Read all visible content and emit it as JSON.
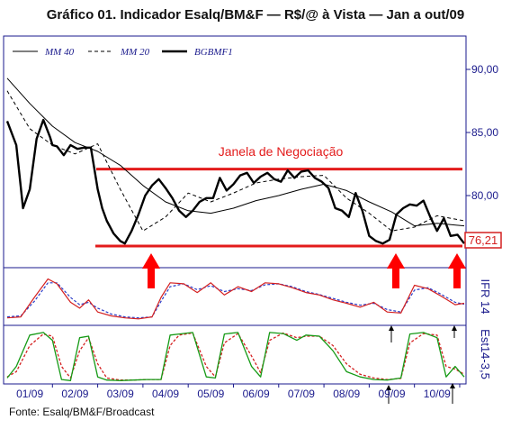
{
  "title": "Gráfico 01. Indicador Esalq/BM&F — R$/@ à Vista  — Jan a out/09",
  "source": "Fonte: Esalq/BM&F/Broadcast",
  "colors": {
    "axis": "#1a1a8c",
    "price": "#000000",
    "band": "#e31b1b",
    "ifr": "#d42020",
    "ifr_signal": "#2a3cc8",
    "est": "#159a15",
    "est_signal": "#d42020",
    "arrow": "#ff0000",
    "last_box": "#d42020"
  },
  "chart_data": [
    {
      "type": "line",
      "title": "",
      "legend": [
        "MM 40",
        "MM 20",
        "BGBMF1"
      ],
      "yticks": [
        "90,00",
        "85,00",
        "80,00"
      ],
      "ylim": [
        75.5,
        90.5
      ],
      "xticks": [
        "01/09",
        "02/09",
        "03/09",
        "04/09",
        "05/09",
        "06/09",
        "07/09",
        "08/09",
        "09/09",
        "10/09"
      ],
      "last_value_label": "76,21",
      "band_label": "Janela de Negociação",
      "band_lines": [
        82.1,
        76.0
      ],
      "series": [
        {
          "name": "BGBMF1",
          "x": [
            0,
            0.2,
            0.35,
            0.5,
            0.65,
            0.8,
            0.95,
            1.0,
            1.1,
            1.25,
            1.4,
            1.55,
            1.7,
            1.85,
            2.0,
            2.1,
            2.2,
            2.35,
            2.5,
            2.6,
            2.75,
            2.9,
            3.05,
            3.2,
            3.35,
            3.5,
            3.65,
            3.8,
            3.95,
            4.1,
            4.25,
            4.4,
            4.55,
            4.7,
            4.85,
            5.0,
            5.15,
            5.3,
            5.45,
            5.6,
            5.75,
            5.9,
            6.05,
            6.2,
            6.35,
            6.5,
            6.65,
            6.8,
            6.95,
            7.1,
            7.25,
            7.4,
            7.55,
            7.7,
            7.85,
            8.0,
            8.15,
            8.3,
            8.45,
            8.6,
            8.75,
            8.9,
            9.05,
            9.2,
            9.35,
            9.5,
            9.65,
            9.8,
            9.95,
            10.1
          ],
          "values": [
            85.9,
            84.0,
            79.0,
            80.5,
            84.5,
            86.0,
            84.6,
            84.0,
            83.9,
            83.2,
            84.0,
            83.7,
            83.8,
            83.8,
            80.5,
            79.0,
            78.0,
            77.0,
            76.4,
            76.2,
            77.2,
            78.5,
            80.0,
            80.8,
            81.3,
            80.6,
            79.8,
            78.8,
            78.3,
            78.8,
            79.5,
            79.8,
            79.8,
            81.4,
            80.4,
            80.9,
            81.6,
            81.8,
            81.0,
            81.5,
            81.8,
            81.3,
            81.1,
            82.0,
            81.4,
            81.9,
            82.0,
            81.4,
            81.1,
            80.6,
            79.0,
            78.8,
            78.3,
            80.2,
            78.8,
            76.8,
            76.4,
            76.2,
            76.5,
            78.5,
            79.0,
            79.3,
            79.2,
            79.6,
            78.3,
            77.2,
            78.2,
            76.8,
            76.9,
            76.2
          ]
        },
        {
          "name": "MM 20",
          "x": [
            0,
            0.5,
            1.0,
            1.5,
            2.0,
            2.5,
            3.0,
            3.5,
            4.0,
            4.5,
            5.0,
            5.5,
            6.0,
            6.5,
            7.0,
            7.5,
            8.0,
            8.5,
            9.0,
            9.5,
            10.1
          ],
          "values": [
            88.3,
            85.3,
            84.0,
            83.3,
            84.1,
            80.5,
            77.2,
            78.3,
            80.2,
            79.5,
            80.2,
            81.0,
            81.3,
            81.5,
            81.6,
            79.8,
            78.6,
            77.2,
            77.5,
            78.4,
            78.0
          ]
        },
        {
          "name": "MM 40",
          "x": [
            0,
            0.5,
            1.0,
            1.5,
            2.0,
            2.5,
            3.0,
            3.5,
            4.0,
            4.5,
            5.0,
            5.5,
            6.0,
            6.5,
            7.0,
            7.5,
            8.0,
            8.5,
            9.0,
            9.5,
            10.1
          ],
          "values": [
            89.3,
            87.3,
            85.5,
            84.2,
            83.5,
            82.4,
            80.8,
            79.5,
            78.8,
            78.6,
            79.0,
            79.6,
            80.0,
            80.5,
            80.9,
            80.4,
            79.5,
            78.7,
            77.6,
            77.8,
            77.6
          ]
        }
      ]
    },
    {
      "type": "line",
      "title": "",
      "side_label": "IFR 14",
      "ylim": [
        0,
        100
      ],
      "series": [
        {
          "name": "IFR",
          "x": [
            0,
            0.3,
            0.6,
            0.9,
            1.1,
            1.4,
            1.6,
            1.8,
            2.0,
            2.3,
            2.6,
            2.9,
            3.2,
            3.4,
            3.6,
            3.9,
            4.2,
            4.5,
            4.8,
            5.1,
            5.4,
            5.7,
            6.0,
            6.3,
            6.6,
            6.9,
            7.2,
            7.5,
            7.8,
            8.1,
            8.4,
            8.7,
            9.0,
            9.3,
            9.6,
            9.9,
            10.1
          ],
          "values": [
            8,
            10,
            50,
            88,
            78,
            40,
            28,
            45,
            20,
            12,
            8,
            6,
            10,
            50,
            80,
            78,
            60,
            80,
            55,
            72,
            62,
            80,
            78,
            70,
            60,
            55,
            45,
            38,
            30,
            40,
            20,
            18,
            75,
            68,
            52,
            35,
            38
          ]
        },
        {
          "name": "IFR sinal",
          "x": [
            0,
            0.3,
            0.6,
            0.9,
            1.1,
            1.4,
            1.6,
            1.8,
            2.0,
            2.3,
            2.6,
            2.9,
            3.2,
            3.4,
            3.6,
            3.9,
            4.2,
            4.5,
            4.8,
            5.1,
            5.4,
            5.7,
            6.0,
            6.3,
            6.6,
            6.9,
            7.2,
            7.5,
            7.8,
            8.1,
            8.4,
            8.7,
            9.0,
            9.3,
            9.6,
            9.9,
            10.1
          ],
          "values": [
            10,
            12,
            42,
            80,
            80,
            50,
            35,
            40,
            28,
            16,
            10,
            8,
            10,
            42,
            72,
            78,
            66,
            74,
            62,
            68,
            64,
            76,
            78,
            72,
            62,
            56,
            48,
            40,
            34,
            38,
            25,
            20,
            65,
            70,
            56,
            40,
            36
          ]
        }
      ]
    },
    {
      "type": "line",
      "title": "",
      "side_label": "Est14-3,5",
      "ylim": [
        0,
        100
      ],
      "series": [
        {
          "name": "Est",
          "x": [
            0,
            0.2,
            0.5,
            0.8,
            1.0,
            1.2,
            1.4,
            1.6,
            1.8,
            2.0,
            2.2,
            2.5,
            2.8,
            3.1,
            3.4,
            3.6,
            3.8,
            4.1,
            4.4,
            4.6,
            4.8,
            5.1,
            5.4,
            5.6,
            5.8,
            6.1,
            6.4,
            6.6,
            6.9,
            7.2,
            7.5,
            7.8,
            8.1,
            8.4,
            8.7,
            8.9,
            9.2,
            9.5,
            9.7,
            9.9,
            10.1
          ],
          "values": [
            8,
            30,
            90,
            95,
            80,
            5,
            3,
            85,
            88,
            10,
            4,
            3,
            4,
            5,
            5,
            90,
            92,
            95,
            10,
            8,
            92,
            95,
            30,
            10,
            95,
            93,
            80,
            90,
            88,
            60,
            20,
            10,
            5,
            4,
            8,
            92,
            95,
            85,
            10,
            30,
            10
          ]
        },
        {
          "name": "Est sinal",
          "x": [
            0,
            0.2,
            0.5,
            0.8,
            1.0,
            1.2,
            1.4,
            1.6,
            1.8,
            2.0,
            2.2,
            2.5,
            2.8,
            3.1,
            3.4,
            3.6,
            3.8,
            4.1,
            4.4,
            4.6,
            4.8,
            5.1,
            5.4,
            5.6,
            5.8,
            6.1,
            6.4,
            6.6,
            6.9,
            7.2,
            7.5,
            7.8,
            8.1,
            8.4,
            8.7,
            8.9,
            9.2,
            9.5,
            9.7,
            9.9,
            10.1
          ],
          "values": [
            10,
            20,
            70,
            92,
            88,
            30,
            8,
            60,
            85,
            35,
            8,
            4,
            4,
            5,
            5,
            70,
            90,
            94,
            30,
            10,
            75,
            93,
            50,
            18,
            80,
            94,
            85,
            88,
            88,
            70,
            35,
            15,
            8,
            5,
            7,
            75,
            93,
            90,
            30,
            25,
            15
          ]
        }
      ]
    }
  ]
}
